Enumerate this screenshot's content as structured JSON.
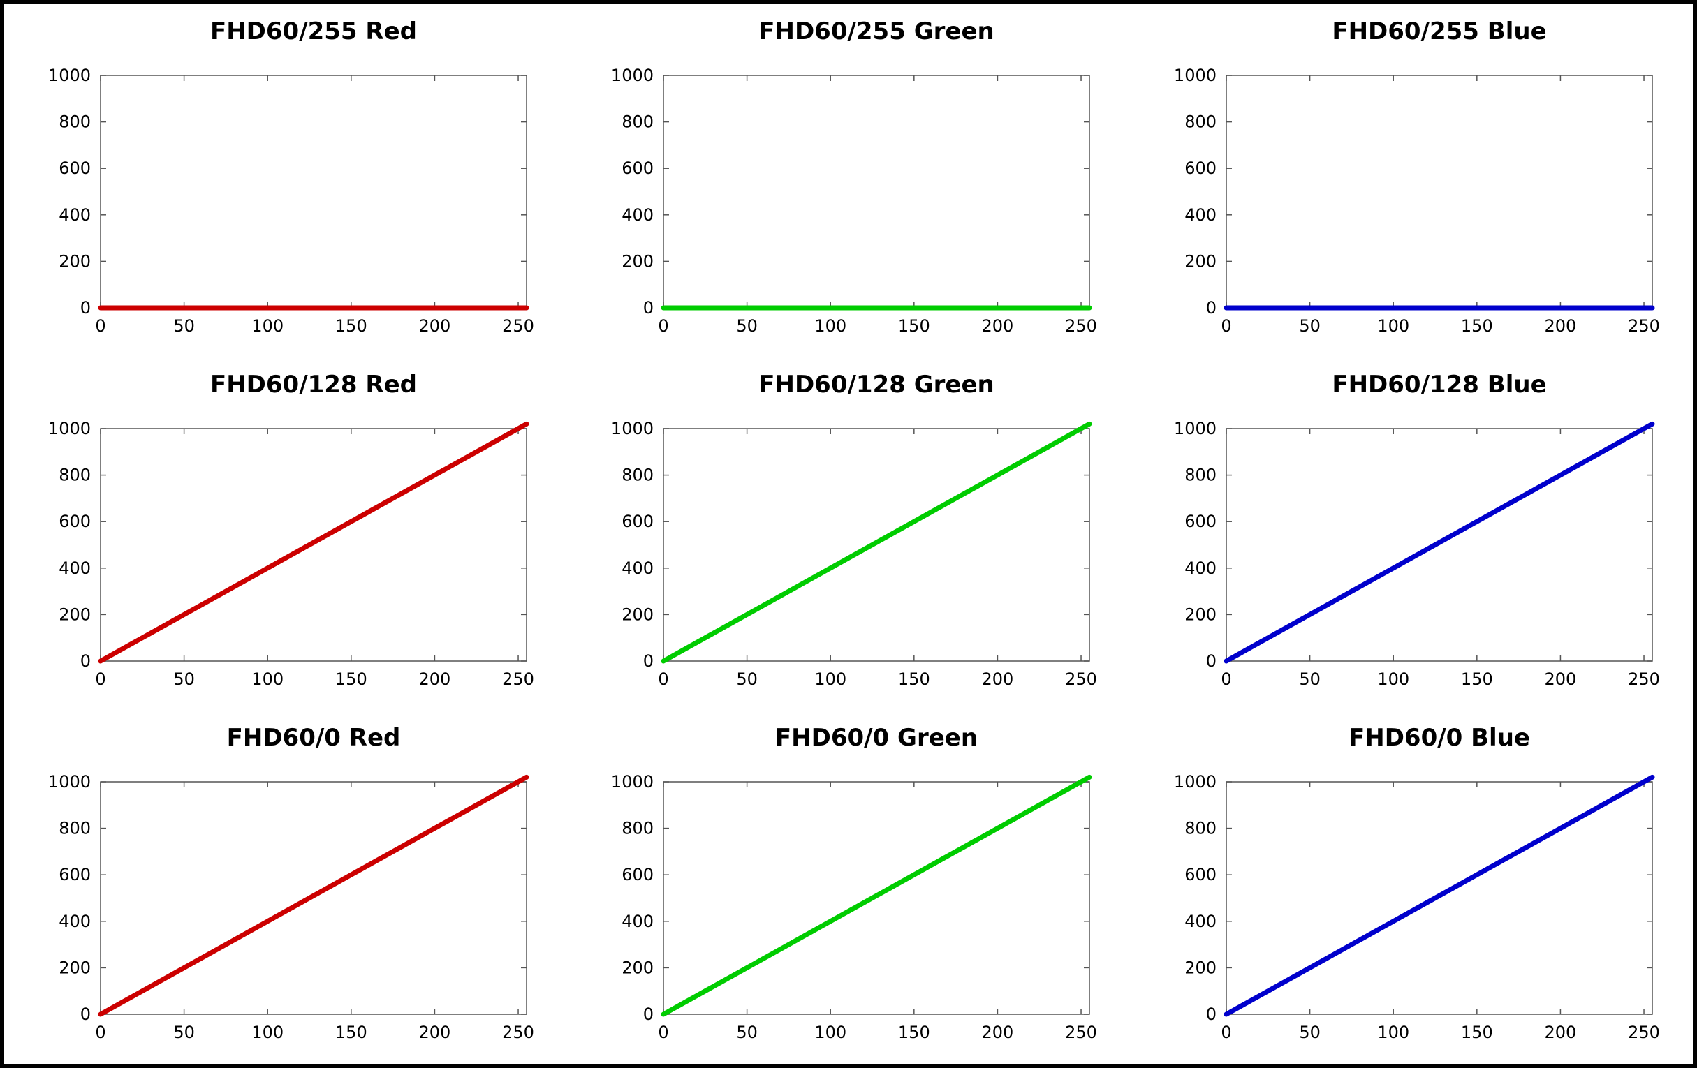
{
  "chart_data": [
    {
      "type": "line",
      "title": "FHD60/255 Red",
      "color": "#cc0000",
      "xlim": [
        0,
        255
      ],
      "ylim": [
        0,
        1000
      ],
      "xticks": [
        "0",
        "50",
        "100",
        "150",
        "200",
        "250"
      ],
      "yticks": [
        "0",
        "200",
        "400",
        "600",
        "800",
        "1000"
      ],
      "series": [
        {
          "x": [
            0,
            255
          ],
          "y": [
            0,
            0
          ]
        }
      ]
    },
    {
      "type": "line",
      "title": "FHD60/255 Green",
      "color": "#00cc00",
      "xlim": [
        0,
        255
      ],
      "ylim": [
        0,
        1000
      ],
      "xticks": [
        "0",
        "50",
        "100",
        "150",
        "200",
        "250"
      ],
      "yticks": [
        "0",
        "200",
        "400",
        "600",
        "800",
        "1000"
      ],
      "series": [
        {
          "x": [
            0,
            255
          ],
          "y": [
            0,
            0
          ]
        }
      ]
    },
    {
      "type": "line",
      "title": "FHD60/255 Blue",
      "color": "#0000cc",
      "xlim": [
        0,
        255
      ],
      "ylim": [
        0,
        1000
      ],
      "xticks": [
        "0",
        "50",
        "100",
        "150",
        "200",
        "250"
      ],
      "yticks": [
        "0",
        "200",
        "400",
        "600",
        "800",
        "1000"
      ],
      "series": [
        {
          "x": [
            0,
            255
          ],
          "y": [
            0,
            0
          ]
        }
      ]
    },
    {
      "type": "line",
      "title": "FHD60/128 Red",
      "color": "#cc0000",
      "xlim": [
        0,
        255
      ],
      "ylim": [
        0,
        1000
      ],
      "xticks": [
        "0",
        "50",
        "100",
        "150",
        "200",
        "250"
      ],
      "yticks": [
        "0",
        "200",
        "400",
        "600",
        "800",
        "1000"
      ],
      "series": [
        {
          "x": [
            0,
            255
          ],
          "y": [
            0,
            1020
          ]
        }
      ]
    },
    {
      "type": "line",
      "title": "FHD60/128 Green",
      "color": "#00cc00",
      "xlim": [
        0,
        255
      ],
      "ylim": [
        0,
        1000
      ],
      "xticks": [
        "0",
        "50",
        "100",
        "150",
        "200",
        "250"
      ],
      "yticks": [
        "0",
        "200",
        "400",
        "600",
        "800",
        "1000"
      ],
      "series": [
        {
          "x": [
            0,
            255
          ],
          "y": [
            0,
            1020
          ]
        }
      ]
    },
    {
      "type": "line",
      "title": "FHD60/128 Blue",
      "color": "#0000cc",
      "xlim": [
        0,
        255
      ],
      "ylim": [
        0,
        1000
      ],
      "xticks": [
        "0",
        "50",
        "100",
        "150",
        "200",
        "250"
      ],
      "yticks": [
        "0",
        "200",
        "400",
        "600",
        "800",
        "1000"
      ],
      "series": [
        {
          "x": [
            0,
            255
          ],
          "y": [
            0,
            1020
          ]
        }
      ]
    },
    {
      "type": "line",
      "title": "FHD60/0 Red",
      "color": "#cc0000",
      "xlim": [
        0,
        255
      ],
      "ylim": [
        0,
        1000
      ],
      "xticks": [
        "0",
        "50",
        "100",
        "150",
        "200",
        "250"
      ],
      "yticks": [
        "0",
        "200",
        "400",
        "600",
        "800",
        "1000"
      ],
      "series": [
        {
          "x": [
            0,
            255
          ],
          "y": [
            0,
            1020
          ]
        }
      ]
    },
    {
      "type": "line",
      "title": "FHD60/0 Green",
      "color": "#00cc00",
      "xlim": [
        0,
        255
      ],
      "ylim": [
        0,
        1000
      ],
      "xticks": [
        "0",
        "50",
        "100",
        "150",
        "200",
        "250"
      ],
      "yticks": [
        "0",
        "200",
        "400",
        "600",
        "800",
        "1000"
      ],
      "series": [
        {
          "x": [
            0,
            255
          ],
          "y": [
            0,
            1020
          ]
        }
      ]
    },
    {
      "type": "line",
      "title": "FHD60/0 Blue",
      "color": "#0000cc",
      "xlim": [
        0,
        255
      ],
      "ylim": [
        0,
        1000
      ],
      "xticks": [
        "0",
        "50",
        "100",
        "150",
        "200",
        "250"
      ],
      "yticks": [
        "0",
        "200",
        "400",
        "600",
        "800",
        "1000"
      ],
      "series": [
        {
          "x": [
            0,
            255
          ],
          "y": [
            0,
            1020
          ]
        }
      ]
    }
  ]
}
